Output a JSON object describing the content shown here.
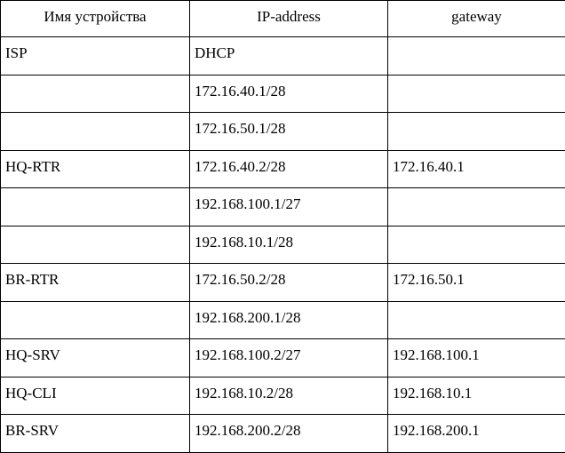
{
  "table": {
    "columns": [
      {
        "key": "device-name",
        "label": "Имя устройства"
      },
      {
        "key": "ip-address",
        "label": "IP-address"
      },
      {
        "key": "gateway",
        "label": "gateway"
      }
    ],
    "rows": [
      {
        "device": "ISP",
        "ip": "DHCP",
        "gateway": ""
      },
      {
        "device": "",
        "ip": "172.16.40.1/28",
        "gateway": ""
      },
      {
        "device": "",
        "ip": "172.16.50.1/28",
        "gateway": ""
      },
      {
        "device": "HQ-RTR",
        "ip": "172.16.40.2/28",
        "gateway": "172.16.40.1"
      },
      {
        "device": "",
        "ip": "192.168.100.1/27",
        "gateway": ""
      },
      {
        "device": "",
        "ip": "192.168.10.1/28",
        "gateway": ""
      },
      {
        "device": "BR-RTR",
        "ip": "172.16.50.2/28",
        "gateway": "172.16.50.1"
      },
      {
        "device": "",
        "ip": "192.168.200.1/28",
        "gateway": ""
      },
      {
        "device": "HQ-SRV",
        "ip": "192.168.100.2/27",
        "gateway": "192.168.100.1"
      },
      {
        "device": "HQ-CLI",
        "ip": "192.168.10.2/28",
        "gateway": "192.168.10.1"
      },
      {
        "device": "BR-SRV",
        "ip": "192.168.200.2/28",
        "gateway": "192.168.200.1"
      }
    ],
    "colors": {
      "border": "#000000",
      "text": "#000000",
      "background": "#ffffff"
    }
  }
}
